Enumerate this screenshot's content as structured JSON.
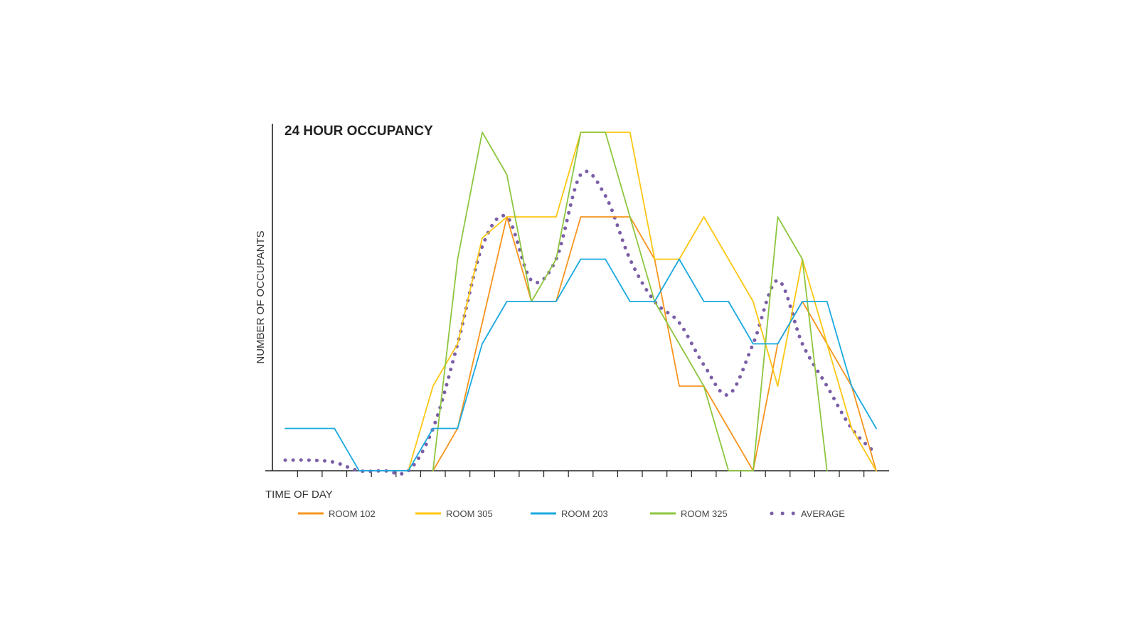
{
  "chart_data": {
    "type": "line",
    "title": "24 HOUR OCCUPANCY",
    "xlabel": "TIME OF DAY",
    "ylabel": "NUMBER OF OCCUPANTS",
    "ylim": [
      0,
      8
    ],
    "grid": false,
    "legend_position": "bottom",
    "x": [
      1,
      2,
      3,
      4,
      5,
      6,
      7,
      8,
      9,
      10,
      11,
      12,
      13,
      14,
      15,
      16,
      17,
      18,
      19,
      20,
      21,
      22,
      23,
      24,
      25
    ],
    "series": [
      {
        "name": "ROOM 102",
        "color": "#f7941d",
        "style": "solid",
        "values": [
          null,
          null,
          null,
          null,
          null,
          null,
          0,
          1,
          3.5,
          6,
          4,
          4,
          6,
          6,
          6,
          5,
          2,
          2,
          1,
          0,
          3,
          4,
          3,
          2,
          0
        ]
      },
      {
        "name": "ROOM 305",
        "color": "#fdc612",
        "style": "solid",
        "values": [
          null,
          null,
          null,
          null,
          null,
          0,
          2,
          3,
          5.5,
          6,
          6,
          6,
          8,
          8,
          8,
          5,
          5,
          6,
          5,
          4,
          2,
          5,
          3,
          1,
          0
        ]
      },
      {
        "name": "ROOM 203",
        "color": "#1ba9e1",
        "style": "solid",
        "values": [
          1,
          1,
          1,
          0,
          0,
          0,
          1,
          1,
          3,
          4,
          4,
          4,
          5,
          5,
          4,
          4,
          5,
          4,
          4,
          3,
          3,
          4,
          4,
          2,
          1
        ]
      },
      {
        "name": "ROOM 325",
        "color": "#8dc63f",
        "style": "solid",
        "values": [
          null,
          null,
          null,
          null,
          null,
          null,
          0,
          5,
          8,
          7,
          4,
          5,
          8,
          8,
          6,
          4,
          3,
          2,
          0,
          0,
          6,
          5,
          0,
          null,
          null
        ]
      },
      {
        "name": "AVERAGE",
        "color": "#7b5ea7",
        "style": "dotted",
        "values": [
          0.25,
          0.25,
          0.2,
          0,
          0,
          0,
          1,
          3,
          5.3,
          6,
          4.5,
          5,
          7,
          6.5,
          5,
          4,
          3.5,
          2.5,
          1.8,
          3,
          4.5,
          3,
          2,
          1,
          0.4
        ]
      }
    ]
  }
}
